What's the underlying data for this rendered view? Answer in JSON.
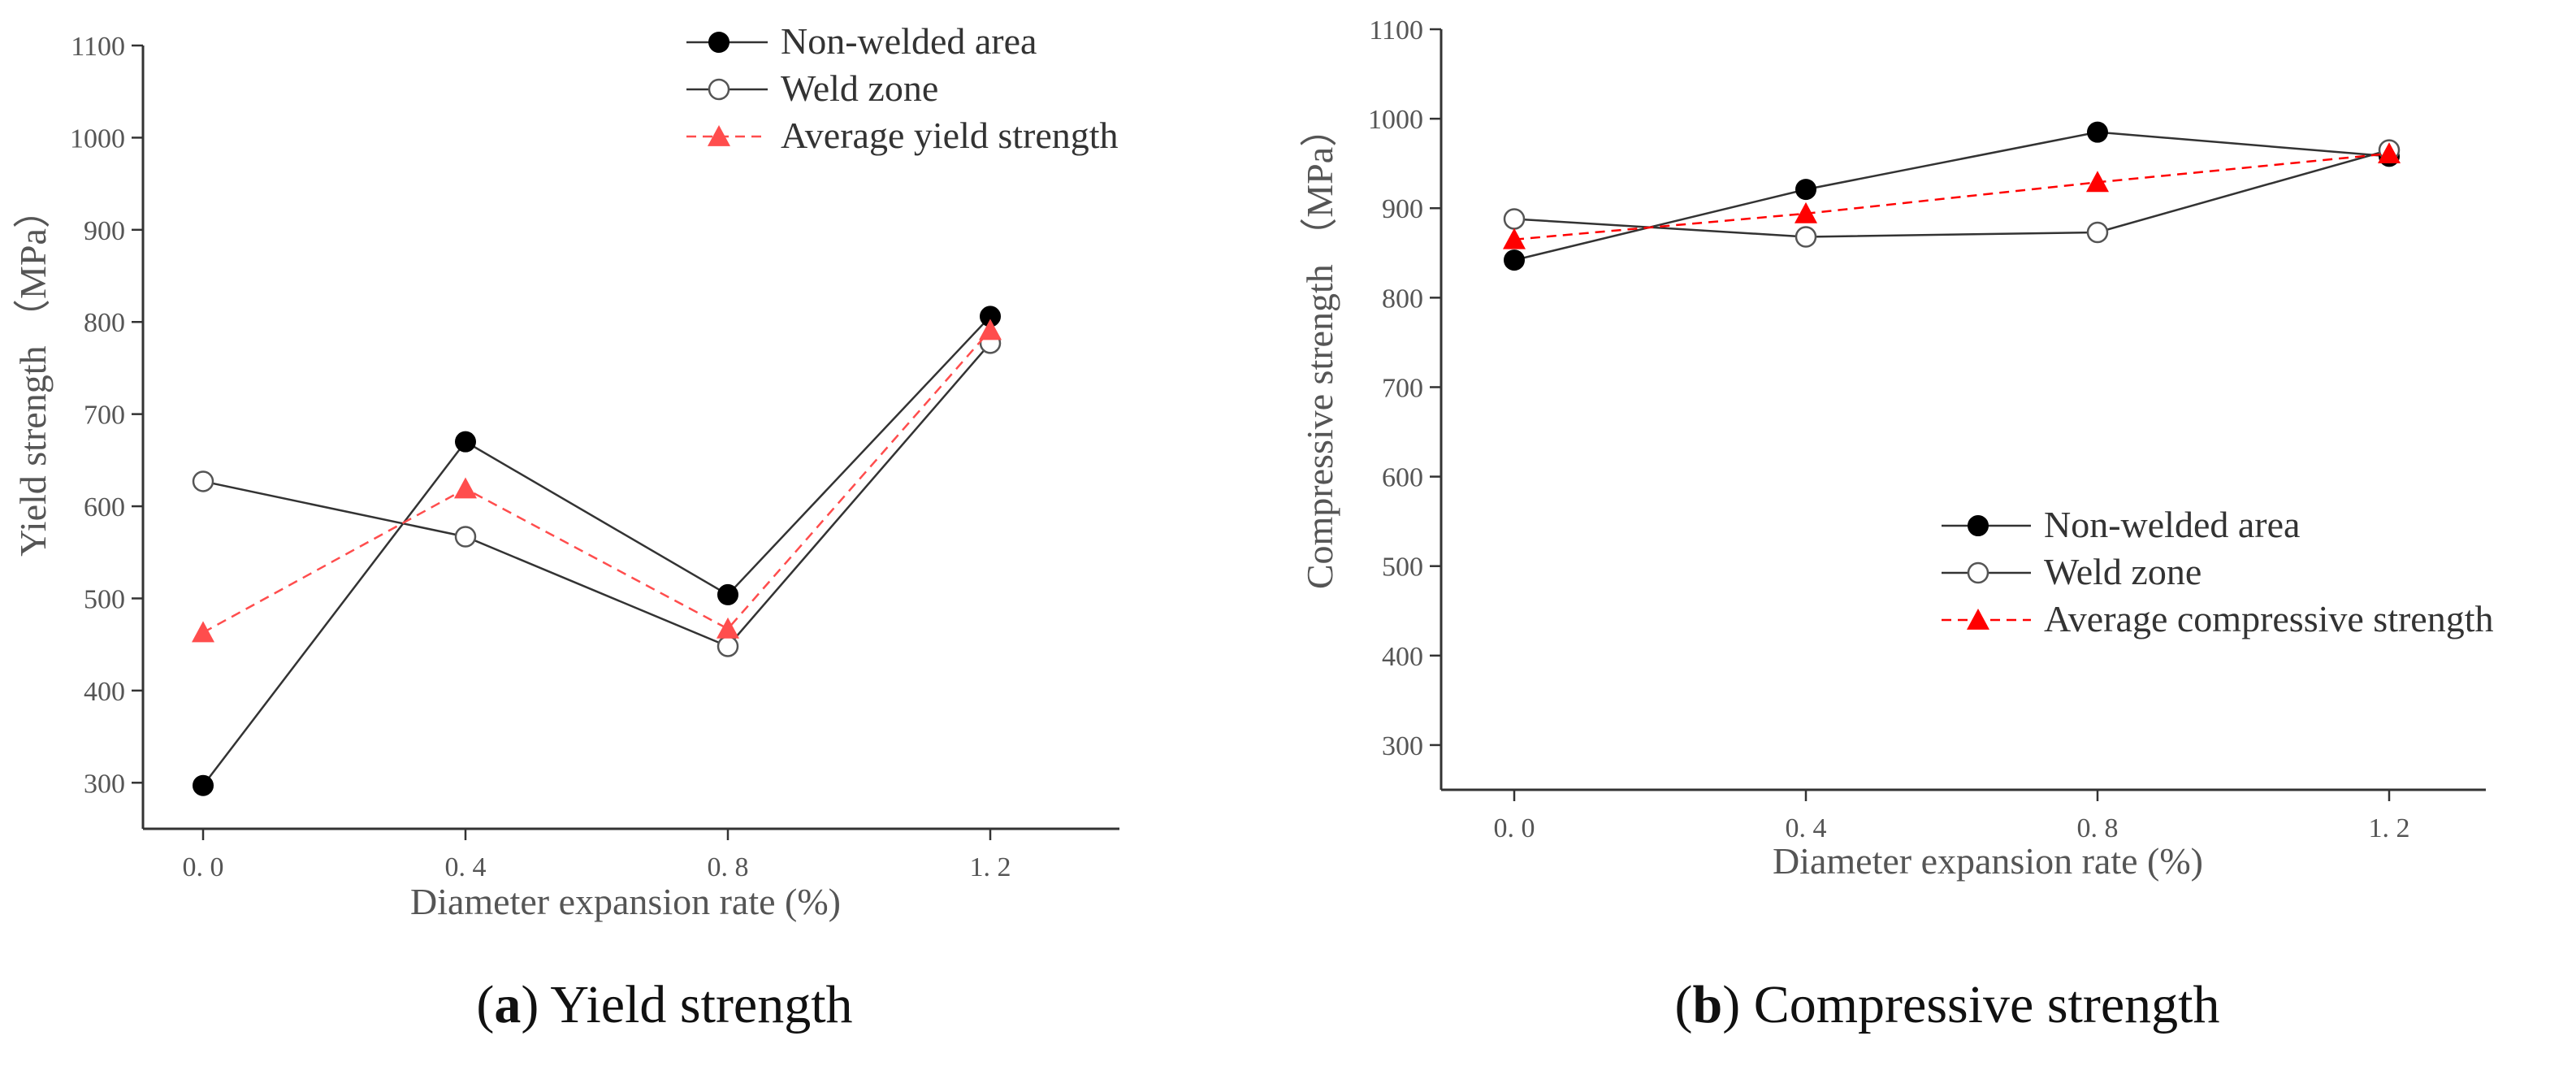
{
  "chart_data": [
    {
      "type": "line",
      "caption_letter": "a",
      "caption_text": "Yield strength",
      "xlabel": "Diameter expansion rate (%)",
      "ylabel": "Yield strength （MPa）",
      "categories": [
        "0.0",
        "0.4",
        "0.8",
        "1.2"
      ],
      "x": [
        0.0,
        0.4,
        0.8,
        1.2
      ],
      "ylim": [
        250,
        1100
      ],
      "yticks": [
        300,
        400,
        500,
        600,
        700,
        800,
        900,
        1000,
        1100
      ],
      "grid": false,
      "legend_position": "top-right",
      "series": [
        {
          "name": "Non-welded area",
          "marker": "filled-circle",
          "color": "#1a1a1a",
          "dashed": false,
          "values": [
            297,
            670,
            504,
            806
          ]
        },
        {
          "name": "Weld zone",
          "marker": "open-circle",
          "color": "#1a1a1a",
          "dashed": false,
          "values": [
            627,
            567,
            448,
            777
          ]
        },
        {
          "name": "Average yield strength",
          "marker": "triangle",
          "color": "#ff4d4d",
          "dashed": true,
          "values": [
            463,
            619,
            467,
            791
          ]
        }
      ]
    },
    {
      "type": "line",
      "caption_letter": "b",
      "caption_text": "Compressive strength",
      "xlabel": "Diameter expansion rate (%)",
      "ylabel": "Compressive strength （MPa）",
      "categories": [
        "0.0",
        "0.4",
        "0.8",
        "1.2"
      ],
      "x": [
        0.0,
        0.4,
        0.8,
        1.2
      ],
      "ylim": [
        250,
        1100
      ],
      "yticks": [
        300,
        400,
        500,
        600,
        700,
        800,
        900,
        1000,
        1100
      ],
      "grid": false,
      "legend_position": "center-right",
      "series": [
        {
          "name": "Non-welded area",
          "marker": "filled-circle",
          "color": "#1a1a1a",
          "dashed": false,
          "values": [
            842,
            921,
            985,
            958
          ]
        },
        {
          "name": "Weld zone",
          "marker": "open-circle",
          "color": "#1a1a1a",
          "dashed": false,
          "values": [
            888,
            868,
            873,
            965
          ]
        },
        {
          "name": "Average compressive strength",
          "marker": "triangle",
          "color": "#ff0000",
          "dashed": true,
          "values": [
            865,
            894,
            929,
            961
          ]
        }
      ]
    }
  ]
}
